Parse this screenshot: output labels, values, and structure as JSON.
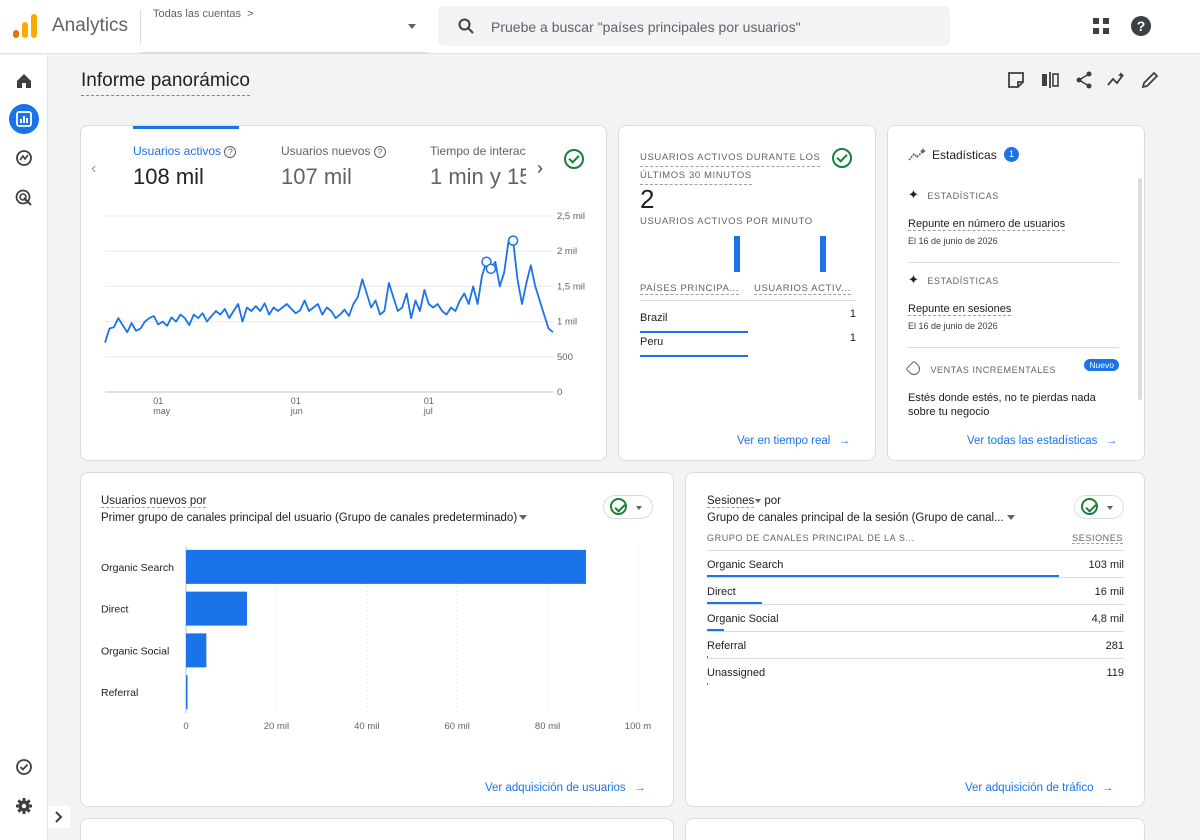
{
  "app": {
    "title": "Analytics",
    "account_label": "Todas las cuentas",
    "account_chevron": ">",
    "search_placeholder": "Pruebe a buscar \"países principales por usuarios\"",
    "colors": {
      "accent": "#1a73e8",
      "logo_orange": "#f9ab00",
      "logo_dark_orange": "#e37400",
      "success": "#188038"
    }
  },
  "nav": {
    "items": [
      "home-icon",
      "reports-icon",
      "explore-icon",
      "advertising-icon",
      "admin-icon",
      "settings-icon"
    ]
  },
  "page": {
    "title": "Informe panorámico"
  },
  "overview_card": {
    "tabs": [
      {
        "label": "Usuarios activos",
        "value": "108 mil"
      },
      {
        "label": "Usuarios nuevos",
        "value": "107 mil"
      },
      {
        "label": "Tiempo de interac",
        "value": "1 min y 15"
      }
    ],
    "prev": "‹",
    "next": "›",
    "chart_data": {
      "type": "line",
      "series": [
        {
          "values": [
            700,
            900,
            920,
            1050,
            950,
            850,
            980,
            870,
            900,
            1000,
            1050,
            1080,
            960,
            1000,
            940,
            1060,
            1000,
            1100,
            1050,
            950,
            1100,
            1050,
            1120,
            1000,
            1080,
            1150,
            1100,
            1180,
            1050,
            1150,
            1250,
            1000,
            1200,
            1150,
            1220,
            1150,
            1260,
            1100,
            1200,
            1150,
            1200,
            1250,
            1180,
            1120,
            1160,
            1300,
            1150,
            1200,
            1250,
            1100,
            1200,
            1150,
            1050,
            1100,
            1170,
            1080,
            1250,
            1350,
            1600,
            1400,
            1200,
            1300,
            1100,
            1150,
            1550,
            1350,
            1150,
            1200,
            1400,
            1050,
            1300,
            1150,
            1450,
            1250,
            1200,
            1250,
            1150,
            1100,
            1200,
            1150,
            1300,
            1400,
            1250,
            1500,
            1250,
            1650,
            1850,
            1750,
            1850,
            1500,
            1700,
            2150,
            2150,
            1600,
            1250,
            1550,
            1800,
            1500,
            1300,
            1100,
            900,
            850
          ]
        }
      ],
      "x_ticks": [
        {
          "day": "01",
          "month": "may",
          "index": 12
        },
        {
          "day": "01",
          "month": "jun",
          "index": 43
        },
        {
          "day": "01",
          "month": "jul",
          "index": 73
        }
      ],
      "y_ticks": [
        "0",
        "500",
        "1 mil",
        "1,5 mil",
        "2 mil",
        "2,5 mil"
      ],
      "ylim": [
        0,
        2500
      ],
      "markers": [
        86,
        87,
        92
      ]
    }
  },
  "realtime_card": {
    "title_line1": "USUARIOS ACTIVOS DURANTE LOS",
    "title_line2": "ÚLTIMOS 30 MINUTOS",
    "value": "2",
    "subtitle": "USUARIOS ACTIVOS POR MINUTO",
    "minute_bars": [
      1,
      1
    ],
    "col1": "PAÍSES PRINCIPA...",
    "col2": "USUARIOS ACTIV...",
    "rows": [
      {
        "country": "Brazil",
        "users": "1",
        "share": 1.0
      },
      {
        "country": "Peru",
        "users": "1",
        "share": 1.0
      }
    ],
    "link": "Ver en tiempo real"
  },
  "insights_card": {
    "title": "Estadísticas",
    "badge": "1",
    "items": [
      {
        "type": "ESTADÍSTICAS",
        "headline": "Repunte en número de usuarios",
        "date": "El 16 de junio de 2026"
      },
      {
        "type": "ESTADÍSTICAS",
        "headline": "Repunte en sesiones",
        "date": "El 16 de junio de 2026"
      }
    ],
    "promo": {
      "type": "VENTAS INCREMENTALES",
      "badge": "Nuevo",
      "line1": "Estés donde estés, no te pierdas nada",
      "line2": "sobre tu negocio"
    },
    "link": "Ver todas las estadísticas"
  },
  "new_users_card": {
    "title": "Usuarios nuevos por",
    "dimension": "Primer grupo de canales principal del usuario (Grupo de canales predeterminado)",
    "link": "Ver adquisición de usuarios",
    "chart_data": {
      "type": "bar",
      "orientation": "horizontal",
      "categories": [
        "Organic Search",
        "Direct",
        "Organic Social",
        "Referral"
      ],
      "values": [
        88500,
        13500,
        4500,
        300
      ],
      "x_ticks": [
        "0",
        "20 mil",
        "40 mil",
        "60 mil",
        "80 mil",
        "100 m"
      ],
      "xlim": [
        0,
        100000
      ]
    }
  },
  "sessions_card": {
    "title": "Sesiones",
    "title_suffix": "por",
    "dimension": "Grupo de canales principal de la sesión (Grupo de canal...",
    "col1": "GRUPO DE CANALES PRINCIPAL DE LA S...",
    "col2": "SESIONES",
    "rows": [
      {
        "channel": "Organic Search",
        "sessions": "103 mil",
        "share": 1.0
      },
      {
        "channel": "Direct",
        "sessions": "16 mil",
        "share": 0.155
      },
      {
        "channel": "Organic Social",
        "sessions": "4,8 mil",
        "share": 0.047
      },
      {
        "channel": "Referral",
        "sessions": "281",
        "share": 0.003
      },
      {
        "channel": "Unassigned",
        "sessions": "119",
        "share": 0.001
      }
    ],
    "link": "Ver adquisición de tráfico"
  }
}
